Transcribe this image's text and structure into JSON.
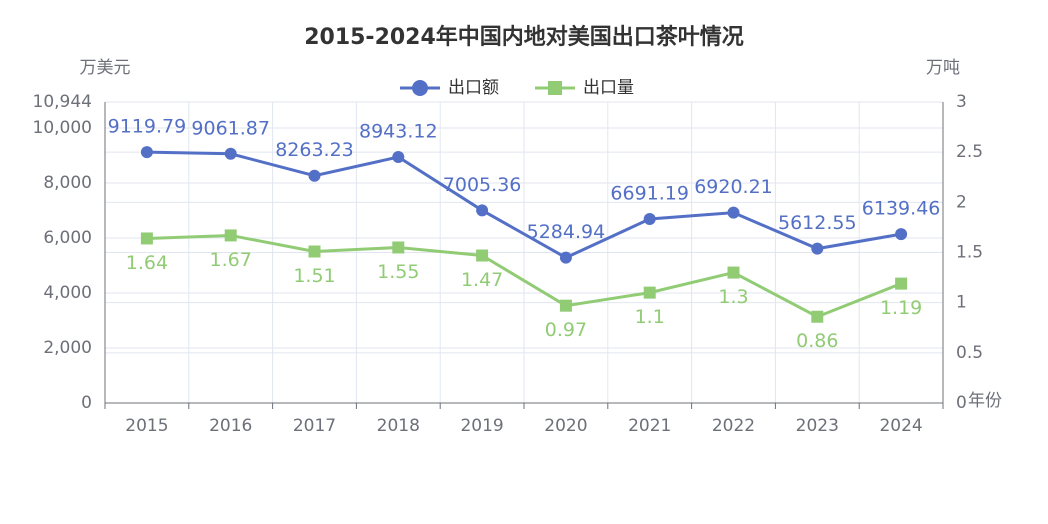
{
  "chart_data": {
    "type": "line",
    "title": "2015-2024年中国内地对美国出口茶叶情况",
    "y_label": "万美元",
    "y2_label": "万吨",
    "x_label": "年份",
    "categories": [
      "2015",
      "2016",
      "2017",
      "2018",
      "2019",
      "2020",
      "2021",
      "2022",
      "2023",
      "2024"
    ],
    "series": [
      {
        "name": "出口额",
        "color": "#5470c6",
        "marker": "circle",
        "values": [
          9119.79,
          9061.87,
          8263.23,
          8943.12,
          7005.36,
          5284.94,
          6691.19,
          6920.21,
          5612.55,
          6139.46
        ]
      },
      {
        "name": "出口量",
        "color": "#91cc75",
        "marker": "square",
        "axis": "y2",
        "values": [
          1.64,
          1.67,
          1.51,
          1.55,
          1.47,
          0.97,
          1.1,
          1.3,
          0.86,
          1.19
        ]
      }
    ],
    "ylim": [
      0,
      10944
    ],
    "yticks": [
      0,
      {
        "value": 2000,
        "label": "2,000"
      },
      {
        "value": 4000,
        "label": "4,000"
      },
      {
        "value": 6000,
        "label": "6,000"
      },
      {
        "value": 8000,
        "label": "8,000"
      },
      {
        "value": 10000,
        "label": "10,000"
      },
      {
        "value": 10944,
        "label": "10,944"
      }
    ],
    "y2lim": [
      0,
      3
    ],
    "y2ticks": [
      0,
      0.5,
      1,
      1.5,
      2,
      2.5,
      3
    ],
    "grid": true,
    "legend": "top"
  }
}
